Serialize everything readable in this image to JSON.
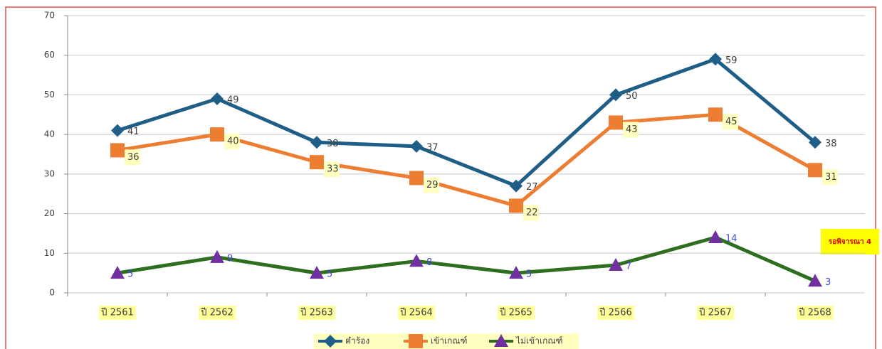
{
  "chart_data": {
    "type": "line",
    "categories": [
      "ปี 2561",
      "ปี 2562",
      "ปี 2563",
      "ปี 2564",
      "ปี 2565",
      "ปี 2566",
      "ปี 2567",
      "ปี 2568"
    ],
    "series": [
      {
        "name": "คำร้อง",
        "color": "#1f5f87",
        "marker": "diamond",
        "marker_color": "#1f5f87",
        "label_color": "#404040",
        "values": [
          41,
          49,
          38,
          37,
          27,
          50,
          59,
          38
        ]
      },
      {
        "name": "เข้าเกณฑ์",
        "color": "#ed7d31",
        "marker": "square",
        "marker_color": "#ed7d31",
        "label_color": "#404040",
        "values": [
          36,
          40,
          33,
          29,
          22,
          43,
          45,
          31
        ]
      },
      {
        "name": "ไม่เข้าเกณฑ์",
        "color": "#2e6e1f",
        "marker": "triangle",
        "marker_color": "#7030a0",
        "label_color": "#4a4adc",
        "values": [
          5,
          9,
          5,
          8,
          5,
          7,
          14,
          3
        ]
      }
    ],
    "ylim": [
      0,
      70
    ],
    "yticks": [
      0,
      10,
      20,
      30,
      40,
      50,
      60,
      70
    ],
    "grid": true,
    "legend": "bottom",
    "annotation": "รอพิจารณา 4"
  }
}
